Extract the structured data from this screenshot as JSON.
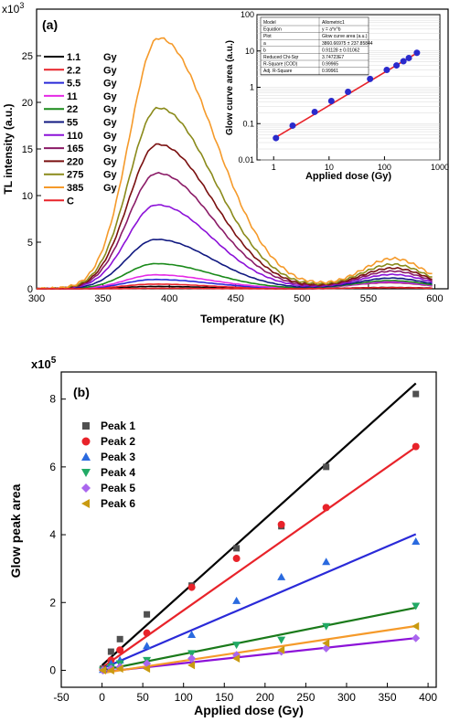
{
  "chart_data": [
    {
      "type": "line",
      "panel_label": "(a)",
      "xlabel": "Temperature (K)",
      "ylabel": "TL intensity (a.u.)",
      "y_multiplier": "x10",
      "y_multiplier_exp": "3",
      "xlim": [
        300,
        610
      ],
      "ylim": [
        0,
        30
      ],
      "xticks": [
        300,
        350,
        400,
        450,
        500,
        550,
        600
      ],
      "yticks": [
        0,
        5,
        10,
        15,
        20,
        25
      ],
      "legend_position": "left",
      "legend_units": "Gy",
      "series": [
        {
          "name": "1.1",
          "color": "#000000",
          "peak": 0.25
        },
        {
          "name": "2.2",
          "color": "#e8232a",
          "peak": 0.5
        },
        {
          "name": "5.5",
          "color": "#2a2ad8",
          "peak": 1.0
        },
        {
          "name": "11",
          "color": "#e52ae5",
          "peak": 1.5
        },
        {
          "name": "22",
          "color": "#1a8a1a",
          "peak": 2.7
        },
        {
          "name": "55",
          "color": "#101880",
          "peak": 5.3
        },
        {
          "name": "110",
          "color": "#8c12d8",
          "peak": 9.0
        },
        {
          "name": "165",
          "color": "#8a1a66",
          "peak": 12.4
        },
        {
          "name": "220",
          "color": "#7a1010",
          "peak": 15.5
        },
        {
          "name": "275",
          "color": "#8a8a1a",
          "peak": 19.4
        },
        {
          "name": "385",
          "color": "#f59a2a",
          "peak": 26.9
        },
        {
          "name": "C",
          "color": "#e8232a",
          "peak": 0.05
        }
      ],
      "inset": {
        "type": "scatter",
        "xlabel": "Applied dose (Gy)",
        "ylabel": "Glow curve area (a.u.)",
        "xscale": "log",
        "yscale": "log",
        "xlim": [
          0.5,
          1000
        ],
        "ylim": [
          0.01,
          100
        ],
        "xticks": [
          "1",
          "10",
          "100",
          "1000"
        ],
        "yticks": [
          "0.01",
          "0.1",
          "1",
          "10",
          "100"
        ],
        "points": [
          {
            "x": 1.1,
            "y": 0.04
          },
          {
            "x": 2.2,
            "y": 0.088
          },
          {
            "x": 5.5,
            "y": 0.21
          },
          {
            "x": 11,
            "y": 0.42
          },
          {
            "x": 22,
            "y": 0.75
          },
          {
            "x": 55,
            "y": 1.7
          },
          {
            "x": 110,
            "y": 3.0
          },
          {
            "x": 165,
            "y": 4.0
          },
          {
            "x": 220,
            "y": 5.2
          },
          {
            "x": 275,
            "y": 6.4
          },
          {
            "x": 385,
            "y": 8.9
          }
        ],
        "fit": {
          "a": 0.0386,
          "b": 0.9113
        },
        "fit_table": [
          [
            "Model",
            "Allometric1"
          ],
          [
            "Equation",
            "y = a*x^b"
          ],
          [
            "Plot",
            "Glow curve area (a.u.)"
          ],
          [
            "a",
            "3860.66975 ± 237.85844"
          ],
          [
            "b",
            "0.91128 ± 0.01062"
          ],
          [
            "Reduced Chi-Sqr",
            "3.74723E7"
          ],
          [
            "R-Square (COD)",
            "0.99965"
          ],
          [
            "Adj. R-Square",
            "0.99961"
          ]
        ]
      }
    },
    {
      "type": "scatter",
      "panel_label": "(b)",
      "xlabel": "Applied dose (Gy)",
      "ylabel": "Glow peak area",
      "y_multiplier": "x10",
      "y_multiplier_exp": "5",
      "xlim": [
        -50,
        410
      ],
      "ylim": [
        -0.5,
        8.8
      ],
      "xticks": [
        -50,
        0,
        50,
        100,
        150,
        200,
        250,
        300,
        350,
        400
      ],
      "yticks": [
        0,
        2,
        4,
        6,
        8
      ],
      "legend_position": "top-left",
      "x": [
        1.1,
        11,
        22,
        55,
        110,
        165,
        220,
        275,
        385
      ],
      "series": [
        {
          "name": "Peak 1",
          "color": "#505050",
          "line": "#000000",
          "marker": "square",
          "values": [
            0.05,
            0.55,
            0.92,
            1.65,
            2.5,
            3.6,
            4.25,
            6.0,
            8.15
          ],
          "fit": [
            0.15,
            0.0216
          ]
        },
        {
          "name": "Peak 2",
          "color": "#e8232a",
          "line": "#e8232a",
          "marker": "circle",
          "values": [
            0.03,
            0.3,
            0.6,
            1.1,
            2.45,
            3.3,
            4.3,
            4.8,
            6.6
          ],
          "fit": [
            0.08,
            0.0169
          ]
        },
        {
          "name": "Peak 3",
          "color": "#2a6adf",
          "line": "#2a2ad8",
          "marker": "triangle-up",
          "values": [
            0.02,
            0.2,
            0.3,
            0.72,
            1.05,
            2.05,
            2.75,
            3.2,
            3.8
          ],
          "fit": [
            0.05,
            0.0103
          ]
        },
        {
          "name": "Peak 4",
          "color": "#22aa66",
          "line": "#1a7a1a",
          "marker": "triangle-down",
          "values": [
            0.01,
            0.1,
            0.2,
            0.3,
            0.5,
            0.75,
            0.9,
            1.3,
            1.9
          ],
          "fit": [
            0.0,
            0.0048
          ]
        },
        {
          "name": "Peak 5",
          "color": "#aa66ee",
          "line": "#8c12d8",
          "marker": "diamond",
          "values": [
            0.0,
            0.05,
            0.1,
            0.2,
            0.35,
            0.45,
            0.55,
            0.65,
            0.95
          ],
          "fit": [
            -0.05,
            0.0026
          ]
        },
        {
          "name": "Peak 6",
          "color": "#c99a10",
          "line": "#f59a2a",
          "marker": "triangle-left",
          "values": [
            0.0,
            0.0,
            0.05,
            0.05,
            0.15,
            0.35,
            0.6,
            0.8,
            1.3
          ],
          "fit": [
            -0.08,
            0.0036
          ]
        }
      ]
    }
  ]
}
